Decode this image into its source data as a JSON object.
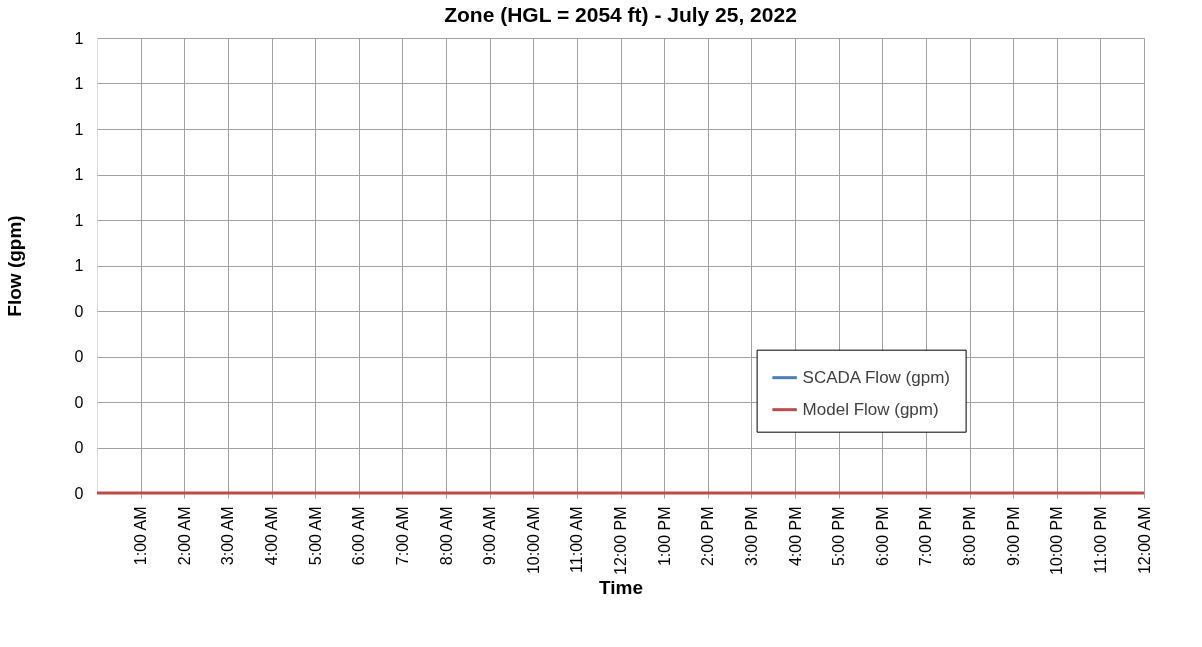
{
  "chart_data": {
    "type": "line",
    "title": "Zone (HGL = 2054 ft) - July 25, 2022",
    "xlabel": "Time",
    "ylabel": "Flow (gpm)",
    "x": [
      0,
      24
    ],
    "series": [
      {
        "name": "SCADA Flow (gpm)",
        "color": "#4a7ebb",
        "values": [
          null,
          null
        ]
      },
      {
        "name": "Model Flow (gpm)",
        "color": "#be4b48",
        "values": [
          0,
          0
        ]
      }
    ],
    "xlim": [
      0,
      24
    ],
    "xticks": [
      {
        "value": 1,
        "label": "1:00 AM"
      },
      {
        "value": 2,
        "label": "2:00 AM"
      },
      {
        "value": 3,
        "label": "3:00 AM"
      },
      {
        "value": 4,
        "label": "4:00 AM"
      },
      {
        "value": 5,
        "label": "5:00 AM"
      },
      {
        "value": 6,
        "label": "6:00 AM"
      },
      {
        "value": 7,
        "label": "7:00 AM"
      },
      {
        "value": 8,
        "label": "8:00 AM"
      },
      {
        "value": 9,
        "label": "9:00 AM"
      },
      {
        "value": 10,
        "label": "10:00 AM"
      },
      {
        "value": 11,
        "label": "11:00 AM"
      },
      {
        "value": 12,
        "label": "12:00 PM"
      },
      {
        "value": 13,
        "label": "1:00 PM"
      },
      {
        "value": 14,
        "label": "2:00 PM"
      },
      {
        "value": 15,
        "label": "3:00 PM"
      },
      {
        "value": 16,
        "label": "4:00 PM"
      },
      {
        "value": 17,
        "label": "5:00 PM"
      },
      {
        "value": 18,
        "label": "6:00 PM"
      },
      {
        "value": 19,
        "label": "7:00 PM"
      },
      {
        "value": 20,
        "label": "8:00 PM"
      },
      {
        "value": 21,
        "label": "9:00 PM"
      },
      {
        "value": 22,
        "label": "10:00 PM"
      },
      {
        "value": 23,
        "label": "11:00 PM"
      },
      {
        "value": 24,
        "label": "12:00 AM"
      }
    ],
    "ylim": [
      0,
      1
    ],
    "yticks": [
      0,
      {
        "value": 0.1,
        "label": "0"
      },
      {
        "value": 0.2,
        "label": "0"
      },
      {
        "value": 0.3,
        "label": "0"
      },
      {
        "value": 0.4,
        "label": "0"
      },
      {
        "value": 0.5,
        "label": "1"
      },
      {
        "value": 0.6,
        "label": "1"
      },
      {
        "value": 0.7,
        "label": "1"
      },
      {
        "value": 0.8,
        "label": "1"
      },
      {
        "value": 0.9,
        "label": "1"
      },
      1
    ],
    "grid": true,
    "legend": "bottom right",
    "marker": "none",
    "line_style": "solid"
  }
}
